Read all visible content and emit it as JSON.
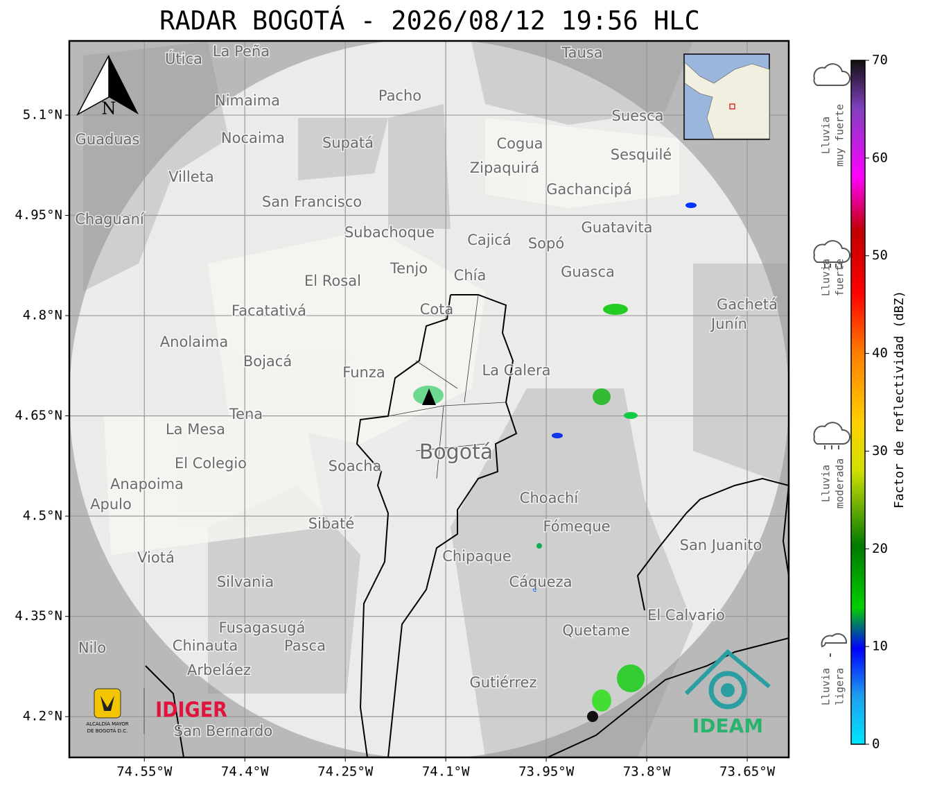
{
  "title": "RADAR BOGOTÁ - 2026/08/12 19:56 HLC",
  "map": {
    "xlim": [
      -74.662,
      -73.588
    ],
    "ylim": [
      4.139,
      5.211
    ],
    "xticks": [
      {
        "value": -74.55,
        "label": "74.55°W"
      },
      {
        "value": -74.4,
        "label": "74.4°W"
      },
      {
        "value": -74.25,
        "label": "74.25°W"
      },
      {
        "value": -74.1,
        "label": "74.1°W"
      },
      {
        "value": -73.95,
        "label": "73.95°W"
      },
      {
        "value": -73.8,
        "label": "73.8°W"
      },
      {
        "value": -73.65,
        "label": "73.65°W"
      }
    ],
    "yticks": [
      {
        "value": 5.1,
        "label": "5.1°N"
      },
      {
        "value": 4.95,
        "label": "4.95°N"
      },
      {
        "value": 4.8,
        "label": "4.8°N"
      },
      {
        "value": 4.65,
        "label": "4.65°N"
      },
      {
        "value": 4.5,
        "label": "4.5°N"
      },
      {
        "value": 4.35,
        "label": "4.35°N"
      },
      {
        "value": 4.2,
        "label": "4.2°N"
      }
    ],
    "grid": true,
    "north_label": "N",
    "places": [
      "La Peña",
      "Útica",
      "Tausa",
      "Pacho",
      "Nimaima",
      "Guaduas",
      "Nocaima",
      "Supatá",
      "Suesca",
      "Cogua",
      "Sesquilé",
      "Zipaquirá",
      "Villeta",
      "Gachancipá",
      "San Francisco",
      "Chaguaní",
      "Guatavita",
      "Subachoque",
      "Cajicá",
      "Sopó",
      "Tenjo",
      "Chía",
      "Guasca",
      "El Rosal",
      "Gachetá",
      "Facatativá",
      "Cota",
      "Junín",
      "Anolaima",
      "Bojacá",
      "Funza",
      "La Calera",
      "Tena",
      "La Mesa",
      "Bogotá",
      "Soacha",
      "El Colegio",
      "Anapoima",
      "Apulo",
      "Choachí",
      "Sibaté",
      "Fómeque",
      "San Juanito",
      "Viotá",
      "Chipaque",
      "Silvania",
      "Cáqueza",
      "El Calvario",
      "Fusagasugá",
      "Quetame",
      "Chinauta",
      "Pasca",
      "Arbeláez",
      "Gutiérrez",
      "San Bernardo",
      "Nilo"
    ]
  },
  "colorbar": {
    "label": "Factor de reflectividad (dBZ)",
    "lim": [
      0,
      70
    ],
    "ticks": [
      0,
      10,
      20,
      30,
      40,
      50,
      60,
      70
    ]
  },
  "rain_levels": [
    {
      "lines": [
        "Lluvia",
        "muy fuerte"
      ]
    },
    {
      "lines": [
        "Lluvia",
        "fuerte"
      ]
    },
    {
      "lines": [
        "Lluvia",
        "moderada"
      ]
    },
    {
      "lines": [
        "Lluvia",
        "ligera"
      ]
    }
  ],
  "logos": {
    "alcaldia": [
      "ALCALDÍA MAYOR",
      "DE BOGOTÁ D.C."
    ],
    "idiger": "IDIGER",
    "ideam": "IDEAM"
  }
}
